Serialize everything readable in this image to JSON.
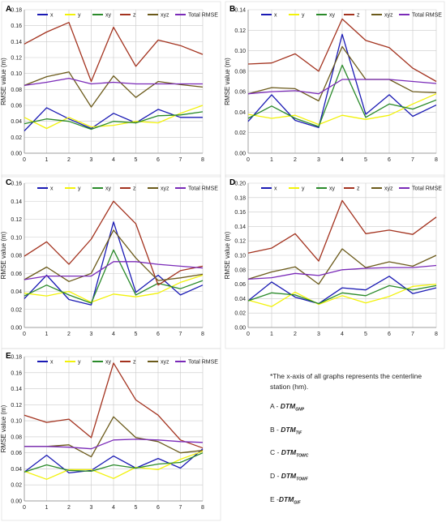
{
  "series_names": [
    "x",
    "y",
    "xy",
    "z",
    "xyz",
    "Total RMSE"
  ],
  "series_colors": [
    "#1a1ab4",
    "#f2f20a",
    "#2a8a2a",
    "#a3321e",
    "#6b5a1a",
    "#7a2ab8"
  ],
  "y_label": "RMSE value (m)",
  "note": "*The x-axis of all graphs represents the centerline station (hm).",
  "legend_items": [
    {
      "prefix": "A - ",
      "name": "DTM",
      "sub": "GNP"
    },
    {
      "prefix": "B - ",
      "name": "DTM",
      "sub": "TIF"
    },
    {
      "prefix": "C - ",
      "name": "DTM",
      "sub": "TOWC"
    },
    {
      "prefix": "D - ",
      "name": "DTM",
      "sub": "TOWF"
    },
    {
      "prefix": "E -",
      "name": "DTM",
      "sub": "GIF"
    }
  ],
  "chart_data": [
    {
      "type": "line",
      "panel": "A",
      "x": [
        0,
        1,
        2,
        3,
        4,
        5,
        6,
        7,
        8
      ],
      "ylim": [
        0,
        0.18
      ],
      "ytick_step": 0.02,
      "ytick_decimals": 2,
      "grid": true,
      "legend": "top",
      "series": [
        {
          "name": "x",
          "values": [
            0.028,
            0.057,
            0.043,
            0.031,
            0.05,
            0.038,
            0.055,
            0.045,
            0.045
          ]
        },
        {
          "name": "y",
          "values": [
            0.045,
            0.031,
            0.045,
            0.033,
            0.035,
            0.04,
            0.038,
            0.05,
            0.06
          ]
        },
        {
          "name": "xy",
          "values": [
            0.037,
            0.043,
            0.04,
            0.03,
            0.04,
            0.038,
            0.047,
            0.048,
            0.052
          ]
        },
        {
          "name": "z",
          "values": [
            0.137,
            0.152,
            0.164,
            0.09,
            0.158,
            0.109,
            0.142,
            0.135,
            0.124
          ]
        },
        {
          "name": "xyz",
          "values": [
            0.085,
            0.096,
            0.102,
            0.058,
            0.097,
            0.07,
            0.09,
            0.086,
            0.083
          ]
        },
        {
          "name": "Total RMSE",
          "values": [
            0.085,
            0.089,
            0.094,
            0.087,
            0.089,
            0.087,
            0.087,
            0.087,
            0.087
          ]
        }
      ]
    },
    {
      "type": "line",
      "panel": "B",
      "x": [
        0,
        1,
        2,
        3,
        4,
        5,
        6,
        7,
        8
      ],
      "ylim": [
        0,
        0.14
      ],
      "ytick_step": 0.02,
      "ytick_decimals": 2,
      "grid": true,
      "legend": "top",
      "series": [
        {
          "name": "x",
          "values": [
            0.031,
            0.057,
            0.032,
            0.025,
            0.116,
            0.038,
            0.057,
            0.036,
            0.047
          ]
        },
        {
          "name": "y",
          "values": [
            0.038,
            0.034,
            0.037,
            0.028,
            0.037,
            0.033,
            0.037,
            0.048,
            0.058
          ]
        },
        {
          "name": "xy",
          "values": [
            0.034,
            0.046,
            0.034,
            0.026,
            0.086,
            0.035,
            0.048,
            0.043,
            0.052
          ]
        },
        {
          "name": "z",
          "values": [
            0.087,
            0.088,
            0.097,
            0.08,
            0.131,
            0.11,
            0.103,
            0.083,
            0.07
          ]
        },
        {
          "name": "xyz",
          "values": [
            0.058,
            0.064,
            0.063,
            0.051,
            0.104,
            0.072,
            0.072,
            0.06,
            0.059
          ]
        },
        {
          "name": "Total RMSE",
          "values": [
            0.058,
            0.06,
            0.061,
            0.058,
            0.072,
            0.072,
            0.072,
            0.07,
            0.068
          ]
        }
      ]
    },
    {
      "type": "line",
      "panel": "C",
      "x": [
        0,
        1,
        2,
        3,
        4,
        5,
        6,
        7,
        8
      ],
      "ylim": [
        0,
        0.16
      ],
      "ytick_step": 0.02,
      "ytick_decimals": 2,
      "grid": true,
      "legend": "top",
      "series": [
        {
          "name": "x",
          "values": [
            0.032,
            0.058,
            0.031,
            0.025,
            0.117,
            0.039,
            0.058,
            0.036,
            0.047
          ]
        },
        {
          "name": "y",
          "values": [
            0.038,
            0.035,
            0.04,
            0.028,
            0.037,
            0.034,
            0.038,
            0.05,
            0.058
          ]
        },
        {
          "name": "xy",
          "values": [
            0.035,
            0.047,
            0.036,
            0.027,
            0.086,
            0.036,
            0.049,
            0.043,
            0.052
          ]
        },
        {
          "name": "z",
          "values": [
            0.079,
            0.095,
            0.07,
            0.098,
            0.14,
            0.115,
            0.047,
            0.063,
            0.068
          ]
        },
        {
          "name": "xyz",
          "values": [
            0.053,
            0.067,
            0.051,
            0.06,
            0.108,
            0.077,
            0.052,
            0.055,
            0.059
          ]
        },
        {
          "name": "Total RMSE",
          "values": [
            0.053,
            0.057,
            0.057,
            0.057,
            0.073,
            0.073,
            0.07,
            0.068,
            0.066
          ]
        }
      ]
    },
    {
      "type": "line",
      "panel": "D",
      "x": [
        0,
        1,
        2,
        3,
        4,
        5,
        6,
        7,
        8
      ],
      "ylim": [
        0,
        0.2
      ],
      "ytick_step": 0.02,
      "ytick_decimals": 2,
      "grid": true,
      "legend": "top",
      "series": [
        {
          "name": "x",
          "values": [
            0.037,
            0.063,
            0.042,
            0.033,
            0.055,
            0.052,
            0.071,
            0.047,
            0.055
          ]
        },
        {
          "name": "y",
          "values": [
            0.038,
            0.029,
            0.049,
            0.032,
            0.044,
            0.034,
            0.043,
            0.057,
            0.06
          ]
        },
        {
          "name": "xy",
          "values": [
            0.037,
            0.048,
            0.045,
            0.033,
            0.048,
            0.044,
            0.058,
            0.052,
            0.058
          ]
        },
        {
          "name": "z",
          "values": [
            0.103,
            0.11,
            0.13,
            0.092,
            0.176,
            0.13,
            0.135,
            0.129,
            0.153
          ]
        },
        {
          "name": "xyz",
          "values": [
            0.067,
            0.077,
            0.084,
            0.06,
            0.109,
            0.083,
            0.091,
            0.085,
            0.1
          ]
        },
        {
          "name": "Total RMSE",
          "values": [
            0.067,
            0.069,
            0.075,
            0.072,
            0.08,
            0.082,
            0.083,
            0.083,
            0.086
          ]
        }
      ]
    },
    {
      "type": "line",
      "panel": "E",
      "x": [
        0,
        1,
        2,
        3,
        4,
        5,
        6,
        7,
        8
      ],
      "ylim": [
        0,
        0.18
      ],
      "ytick_step": 0.02,
      "ytick_decimals": 2,
      "grid": true,
      "legend": "top",
      "series": [
        {
          "name": "x",
          "values": [
            0.036,
            0.057,
            0.035,
            0.038,
            0.056,
            0.041,
            0.053,
            0.041,
            0.065
          ]
        },
        {
          "name": "y",
          "values": [
            0.037,
            0.027,
            0.039,
            0.039,
            0.028,
            0.042,
            0.039,
            0.052,
            0.062
          ]
        },
        {
          "name": "xy",
          "values": [
            0.036,
            0.045,
            0.038,
            0.037,
            0.045,
            0.041,
            0.046,
            0.048,
            0.06
          ]
        },
        {
          "name": "z",
          "values": [
            0.107,
            0.098,
            0.102,
            0.079,
            0.172,
            0.126,
            0.107,
            0.076,
            0.066
          ]
        },
        {
          "name": "xyz",
          "values": [
            0.068,
            0.068,
            0.07,
            0.055,
            0.105,
            0.079,
            0.074,
            0.06,
            0.063
          ]
        },
        {
          "name": "Total RMSE",
          "values": [
            0.068,
            0.068,
            0.067,
            0.065,
            0.076,
            0.077,
            0.076,
            0.074,
            0.073
          ]
        }
      ]
    }
  ]
}
